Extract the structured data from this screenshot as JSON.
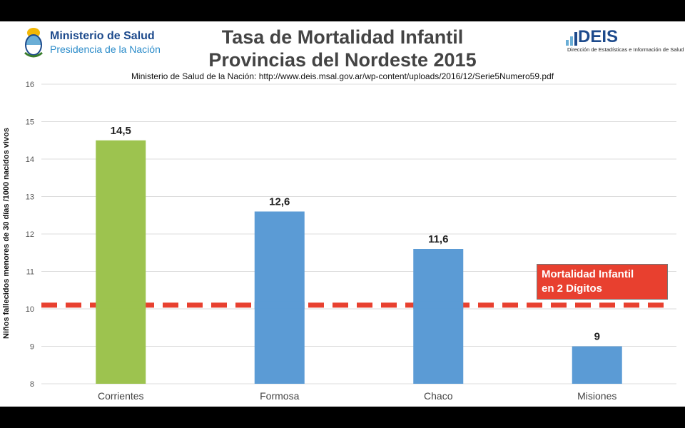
{
  "header": {
    "ministry_line1": "Ministerio de Salud",
    "ministry_line2": "Presidencia de la Nación",
    "title_line1": "Tasa de Mortalidad Infantil",
    "title_line2": "Provincias del Nordeste 2015",
    "source": "Ministerio de Salud de la Nación: http://www.deis.msal.gov.ar/wp-content/uploads/2016/12/Serie5Numero59.pdf",
    "deis_logo": "DEIS",
    "deis_subtitle": "Dirección de Estadísticas e Información de Salud"
  },
  "callout": {
    "line1": "Mortalidad Infantil",
    "line2": "en 2 Dígitos"
  },
  "colors": {
    "highlight_bar": "#9dc34f",
    "bar": "#5b9bd5",
    "threshold_line": "#e8402f",
    "grid": "#dcdcdc"
  },
  "chart_data": {
    "type": "bar",
    "title": "Tasa de Mortalidad Infantil Provincias del Nordeste 2015",
    "ylabel": "Niños fallecidos menores de 30 días /1000 nacidos vivos",
    "xlabel": "",
    "categories": [
      "Corrientes",
      "Formosa",
      "Chaco",
      "Misiones"
    ],
    "values": [
      14.5,
      12.6,
      11.6,
      9
    ],
    "value_labels": [
      "14,5",
      "12,6",
      "11,6",
      "9"
    ],
    "highlight_index": 0,
    "ylim": [
      8,
      16
    ],
    "yticks": [
      8,
      9,
      10,
      11,
      12,
      13,
      14,
      15,
      16
    ],
    "grid": true,
    "threshold": 10.1,
    "threshold_style": "dashed"
  }
}
